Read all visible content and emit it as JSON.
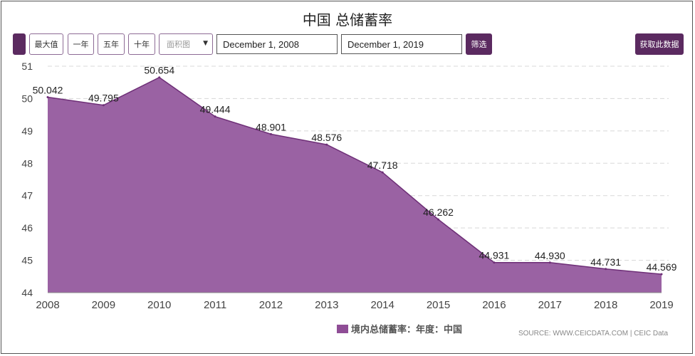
{
  "header": {
    "title": "中国 总储蓄率"
  },
  "toolbar": {
    "max_label": "最大值",
    "one_year_label": "一年",
    "five_year_label": "五年",
    "ten_year_label": "十年",
    "chart_type_label": "面积图",
    "start_date": "December 1, 2008",
    "end_date": "December 1, 2019",
    "filter_label": "筛选",
    "get_data_label": "获取此数据"
  },
  "legend": {
    "label": "境内总储蓄率：年度：中国"
  },
  "source": {
    "text": "SOURCE: WWW.CEICDATA.COM | CEIC Data"
  },
  "colors": {
    "area_fill": "#9a62a3",
    "area_stroke": "#6e2f77",
    "accent": "#5b2a60",
    "grid": "#d8d8d8"
  },
  "chart_data": {
    "type": "area",
    "x": [
      "2008",
      "2009",
      "2010",
      "2011",
      "2012",
      "2013",
      "2014",
      "2015",
      "2016",
      "2017",
      "2018",
      "2019"
    ],
    "series": [
      {
        "name": "境内总储蓄率：年度：中国",
        "values": [
          50.042,
          49.795,
          50.654,
          49.444,
          48.901,
          48.576,
          47.718,
          46.262,
          44.931,
          44.93,
          44.731,
          44.569
        ],
        "labels": [
          "50.042",
          "49.795",
          "50.654",
          "49.444",
          "48.901",
          "48.576",
          "47.718",
          "46.262",
          "44.931",
          "44.930",
          "44.731",
          "44.569"
        ]
      }
    ],
    "yticks": [
      44,
      45,
      46,
      47,
      48,
      49,
      50,
      51
    ],
    "ylim": [
      44,
      51
    ],
    "title": "中国 总储蓄率",
    "grid": true,
    "legend_position": "bottom"
  }
}
